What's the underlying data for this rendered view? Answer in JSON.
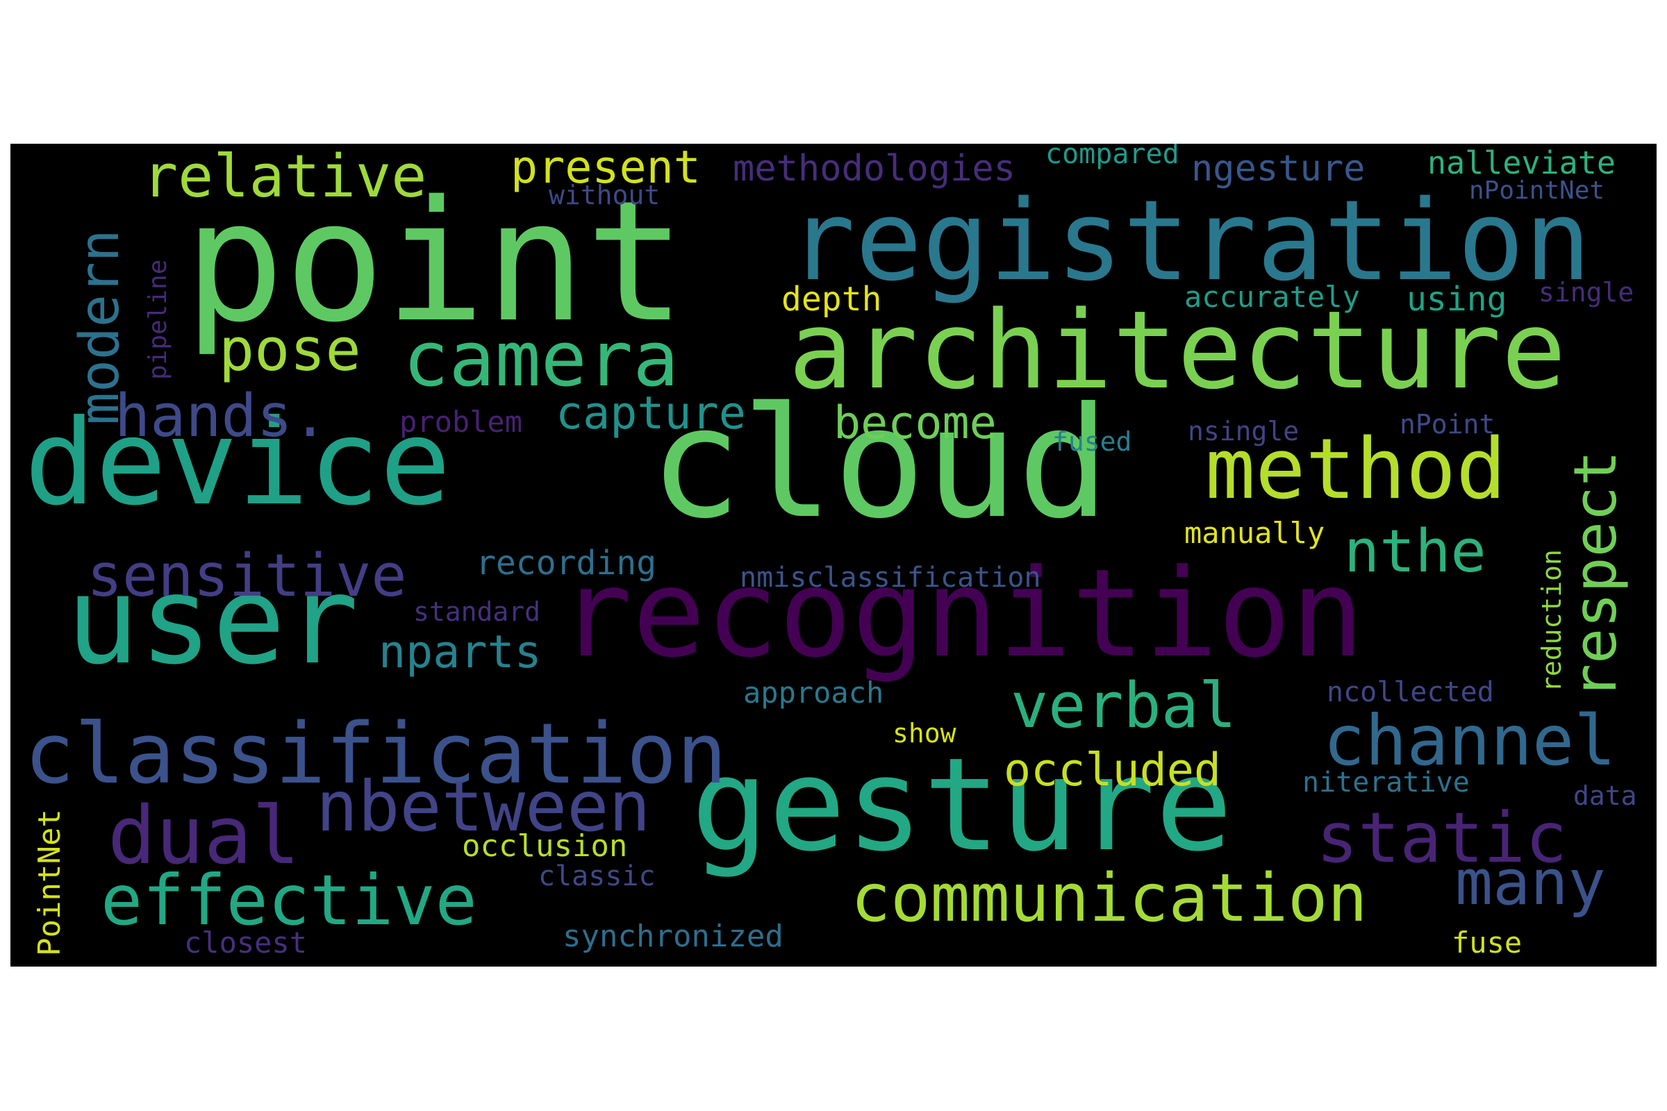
{
  "colors": {
    "background": "#000000",
    "page": "#ffffff"
  },
  "words": [
    {
      "id": "point",
      "text": "point",
      "color": "#5ec962"
    },
    {
      "id": "registration",
      "text": "registration",
      "color": "#2a788e"
    },
    {
      "id": "architecture",
      "text": "architecture",
      "color": "#7ad151"
    },
    {
      "id": "device",
      "text": "device",
      "color": "#1fa187"
    },
    {
      "id": "cloud",
      "text": "cloud",
      "color": "#5ec962"
    },
    {
      "id": "recognition",
      "text": "recognition",
      "color": "#440154"
    },
    {
      "id": "user",
      "text": "user",
      "color": "#20a386"
    },
    {
      "id": "gesture",
      "text": "gesture",
      "color": "#22a884"
    },
    {
      "id": "classification",
      "text": "classification",
      "color": "#3b528b"
    },
    {
      "id": "camera",
      "text": "camera",
      "color": "#35b779"
    },
    {
      "id": "method",
      "text": "method",
      "color": "#b5de2b"
    },
    {
      "id": "communication",
      "text": "communication",
      "color": "#a5db36"
    },
    {
      "id": "dual",
      "text": "dual",
      "color": "#482878"
    },
    {
      "id": "nbetween",
      "text": "nbetween",
      "color": "#414487"
    },
    {
      "id": "effective",
      "text": "effective",
      "color": "#22a884"
    },
    {
      "id": "static",
      "text": "static",
      "color": "#482475"
    },
    {
      "id": "channel",
      "text": "channel",
      "color": "#31688e"
    },
    {
      "id": "verbal",
      "text": "verbal",
      "color": "#2ab07f"
    },
    {
      "id": "many",
      "text": "many",
      "color": "#3b528b"
    },
    {
      "id": "sensitive",
      "text": "sensitive",
      "color": "#433e85"
    },
    {
      "id": "relative",
      "text": "relative",
      "color": "#a0da39"
    },
    {
      "id": "hands",
      "text": "hands.",
      "color": "#3e4a89"
    },
    {
      "id": "pose",
      "text": "pose",
      "color": "#a0da39"
    },
    {
      "id": "nthe",
      "text": "nthe",
      "color": "#2db27d"
    },
    {
      "id": "modern",
      "text": "modern",
      "color": "#2c728e"
    },
    {
      "id": "respect",
      "text": "respect",
      "color": "#70cf57"
    },
    {
      "id": "present",
      "text": "present",
      "color": "#d2e21b"
    },
    {
      "id": "occluded",
      "text": "occluded",
      "color": "#c8e020"
    },
    {
      "id": "capture",
      "text": "capture",
      "color": "#21918c"
    },
    {
      "id": "become",
      "text": "become",
      "color": "#6ece58"
    },
    {
      "id": "nparts",
      "text": "nparts",
      "color": "#26828e"
    },
    {
      "id": "methodologies",
      "text": "methodologies",
      "color": "#472d7b"
    },
    {
      "id": "ngesture",
      "text": "ngesture",
      "color": "#39568c"
    },
    {
      "id": "nalleviate",
      "text": "nalleviate",
      "color": "#2db27d"
    },
    {
      "id": "compared",
      "text": "compared",
      "color": "#1e9b8a"
    },
    {
      "id": "npointnet",
      "text": "nPointNet",
      "color": "#3b528b"
    },
    {
      "id": "without",
      "text": "without",
      "color": "#3e4989"
    },
    {
      "id": "accurately",
      "text": "accurately",
      "color": "#1f9e89"
    },
    {
      "id": "using",
      "text": "using",
      "color": "#20a386"
    },
    {
      "id": "single",
      "text": "single",
      "color": "#472c7a"
    },
    {
      "id": "depth",
      "text": "depth",
      "color": "#e5e419"
    },
    {
      "id": "problem",
      "text": "problem",
      "color": "#482173"
    },
    {
      "id": "fused",
      "text": "fused",
      "color": "#277f8e"
    },
    {
      "id": "nsingle",
      "text": "nsingle",
      "color": "#414487"
    },
    {
      "id": "npoint",
      "text": "nPoint",
      "color": "#3e4a89"
    },
    {
      "id": "manually",
      "text": "manually",
      "color": "#e2e418"
    },
    {
      "id": "recording",
      "text": "recording",
      "color": "#2e6f8e"
    },
    {
      "id": "nmisclassification",
      "text": "nmisclassification",
      "color": "#3a548c"
    },
    {
      "id": "standard",
      "text": "standard",
      "color": "#46307e"
    },
    {
      "id": "approach",
      "text": "approach",
      "color": "#2a788e"
    },
    {
      "id": "ncollected",
      "text": "ncollected",
      "color": "#3f4788"
    },
    {
      "id": "show",
      "text": "show",
      "color": "#d8e219"
    },
    {
      "id": "niterative",
      "text": "niterative",
      "color": "#2d718e"
    },
    {
      "id": "data",
      "text": "data",
      "color": "#404688"
    },
    {
      "id": "occlusion",
      "text": "occlusion",
      "color": "#b8de29"
    },
    {
      "id": "classic",
      "text": "classic",
      "color": "#3e4989"
    },
    {
      "id": "closest",
      "text": "closest",
      "color": "#472f7d"
    },
    {
      "id": "synchronized",
      "text": "synchronized",
      "color": "#2e6e8e"
    },
    {
      "id": "fuse",
      "text": "fuse",
      "color": "#d0e11c"
    },
    {
      "id": "pointnet",
      "text": "PointNet",
      "color": "#d5e21a"
    },
    {
      "id": "pipeline",
      "text": "pipeline",
      "color": "#472a7a"
    },
    {
      "id": "reduction",
      "text": "reduction",
      "color": "#90d743"
    }
  ]
}
